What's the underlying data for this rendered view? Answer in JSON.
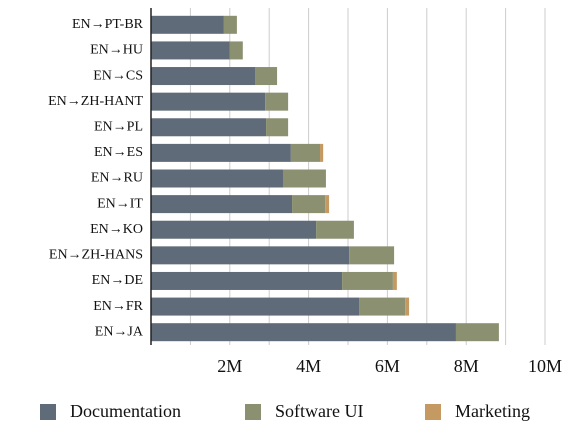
{
  "chart_data": {
    "type": "bar",
    "orientation": "horizontal",
    "stacked": true,
    "categories": [
      "EN→PT-BR",
      "EN→HU",
      "EN→CS",
      "EN→ZH-HANT",
      "EN→PL",
      "EN→ES",
      "EN→RU",
      "EN→IT",
      "EN→KO",
      "EN→ZH-HANS",
      "EN→DE",
      "EN→FR",
      "EN→JA"
    ],
    "series": [
      {
        "name": "Documentation",
        "color": "#5f6b78",
        "values": [
          1.85,
          2.0,
          2.64,
          2.9,
          2.92,
          3.55,
          3.35,
          3.58,
          4.19,
          5.03,
          4.85,
          5.28,
          7.74
        ]
      },
      {
        "name": "Software UI",
        "color": "#8b9170",
        "values": [
          0.33,
          0.33,
          0.56,
          0.58,
          0.56,
          0.74,
          1.09,
          0.84,
          0.96,
          1.14,
          1.29,
          1.17,
          1.09
        ]
      },
      {
        "name": "Marketing",
        "color": "#c49a62",
        "values": [
          0,
          0,
          0,
          0,
          0,
          0.08,
          0,
          0.1,
          0,
          0,
          0.1,
          0.1,
          0
        ]
      }
    ],
    "xlim": [
      0,
      10
    ],
    "xticks": [
      {
        "value": 2,
        "label": "2M"
      },
      {
        "value": 4,
        "label": "4M"
      },
      {
        "value": 6,
        "label": "6M"
      },
      {
        "value": 8,
        "label": "8M"
      },
      {
        "value": 10,
        "label": "10M"
      }
    ],
    "minor_xticks": [
      1,
      3,
      5,
      7,
      9
    ],
    "grid": true,
    "legend": "bottom"
  }
}
